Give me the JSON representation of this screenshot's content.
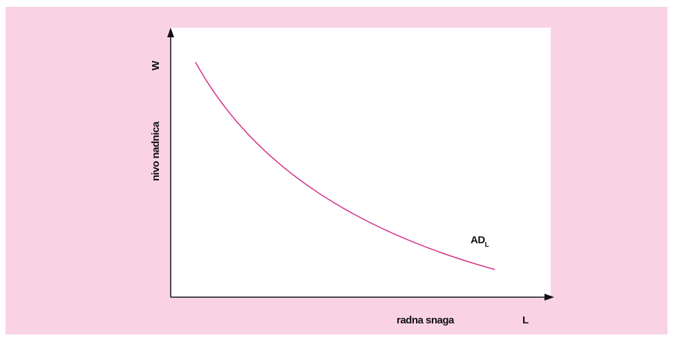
{
  "diagram": {
    "y_axis_label": "nivo nadnica",
    "y_axis_symbol": "W",
    "x_axis_label": "radna snaga",
    "x_axis_symbol": "L",
    "curve_label": "AD",
    "curve_label_subscript": "L"
  }
}
